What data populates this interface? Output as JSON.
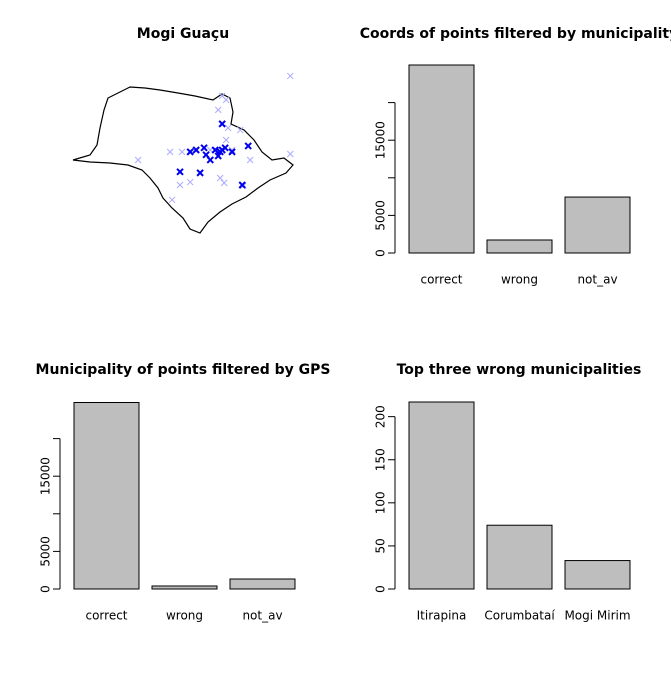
{
  "chart_data": [
    {
      "type": "scatter",
      "title": "Mogi Guaçu",
      "xlim": [
        -53.2,
        -44.0
      ],
      "ylim": [
        -25.4,
        -19.2
      ],
      "series": [
        {
          "color": "#aaaaff",
          "x": [
            -44.31,
            -47.06,
            -46.9,
            -47.22,
            -46.33,
            -46.9,
            -50.45,
            -49.16,
            -48.68,
            -45.93,
            -44.31,
            -48.76,
            -48.35,
            -46.98,
            -47.14,
            -49.08,
            -46.21,
            -46.66,
            -47.54,
            -46.82
          ],
          "values": [
            -19.42,
            -20.16,
            -20.31,
            -20.68,
            -21.43,
            -21.8,
            -22.54,
            -22.24,
            -22.24,
            -22.54,
            -22.32,
            -23.47,
            -23.36,
            -23.39,
            -23.21,
            -24.02,
            -23.5,
            -22.17,
            -22.17,
            -21.35
          ]
        },
        {
          "color": "#0000ee",
          "x": [
            -47.06,
            -48.35,
            -48.11,
            -47.79,
            -47.54,
            -48.76,
            -47.95,
            -47.14,
            -47.34,
            -46.94,
            -46.66,
            -46.01,
            -46.25,
            -47.71,
            -47.22,
            -47.06
          ],
          "values": [
            -21.2,
            -22.24,
            -22.17,
            -22.09,
            -22.54,
            -22.98,
            -23.02,
            -22.24,
            -22.17,
            -22.09,
            -22.24,
            -22.02,
            -23.47,
            -22.35,
            -22.39,
            -22.17
          ]
        }
      ]
    },
    {
      "type": "bar",
      "title": "Coords of points filtered by municipality",
      "categories": [
        "correct",
        "wrong",
        "not_av"
      ],
      "values": [
        25000,
        1730,
        7440
      ],
      "color": "#bebebe",
      "ylim": [
        0,
        25000
      ],
      "yticks": [
        0,
        5000,
        {
          "value": 10000,
          "label": null
        },
        15000,
        {
          "value": 20000,
          "label": null
        }
      ]
    },
    {
      "type": "bar",
      "title": "Municipality of points filtered by GPS",
      "categories": [
        "correct",
        "wrong",
        "not_av"
      ],
      "values": [
        24800,
        400,
        1330
      ],
      "color": "#bebebe",
      "ylim": [
        0,
        25000
      ],
      "yticks": [
        0,
        5000,
        {
          "value": 10000,
          "label": null
        },
        15000,
        {
          "value": 20000,
          "label": null
        }
      ]
    },
    {
      "type": "bar",
      "title": "Top three wrong municipalities",
      "categories": [
        "Itirapina",
        "Corumbataí",
        "Mogi Mirim"
      ],
      "values": [
        217,
        74,
        33
      ],
      "color": "#bebebe",
      "ylim": [
        0,
        217
      ],
      "yticks": [
        0,
        50,
        100,
        150,
        200
      ]
    }
  ]
}
